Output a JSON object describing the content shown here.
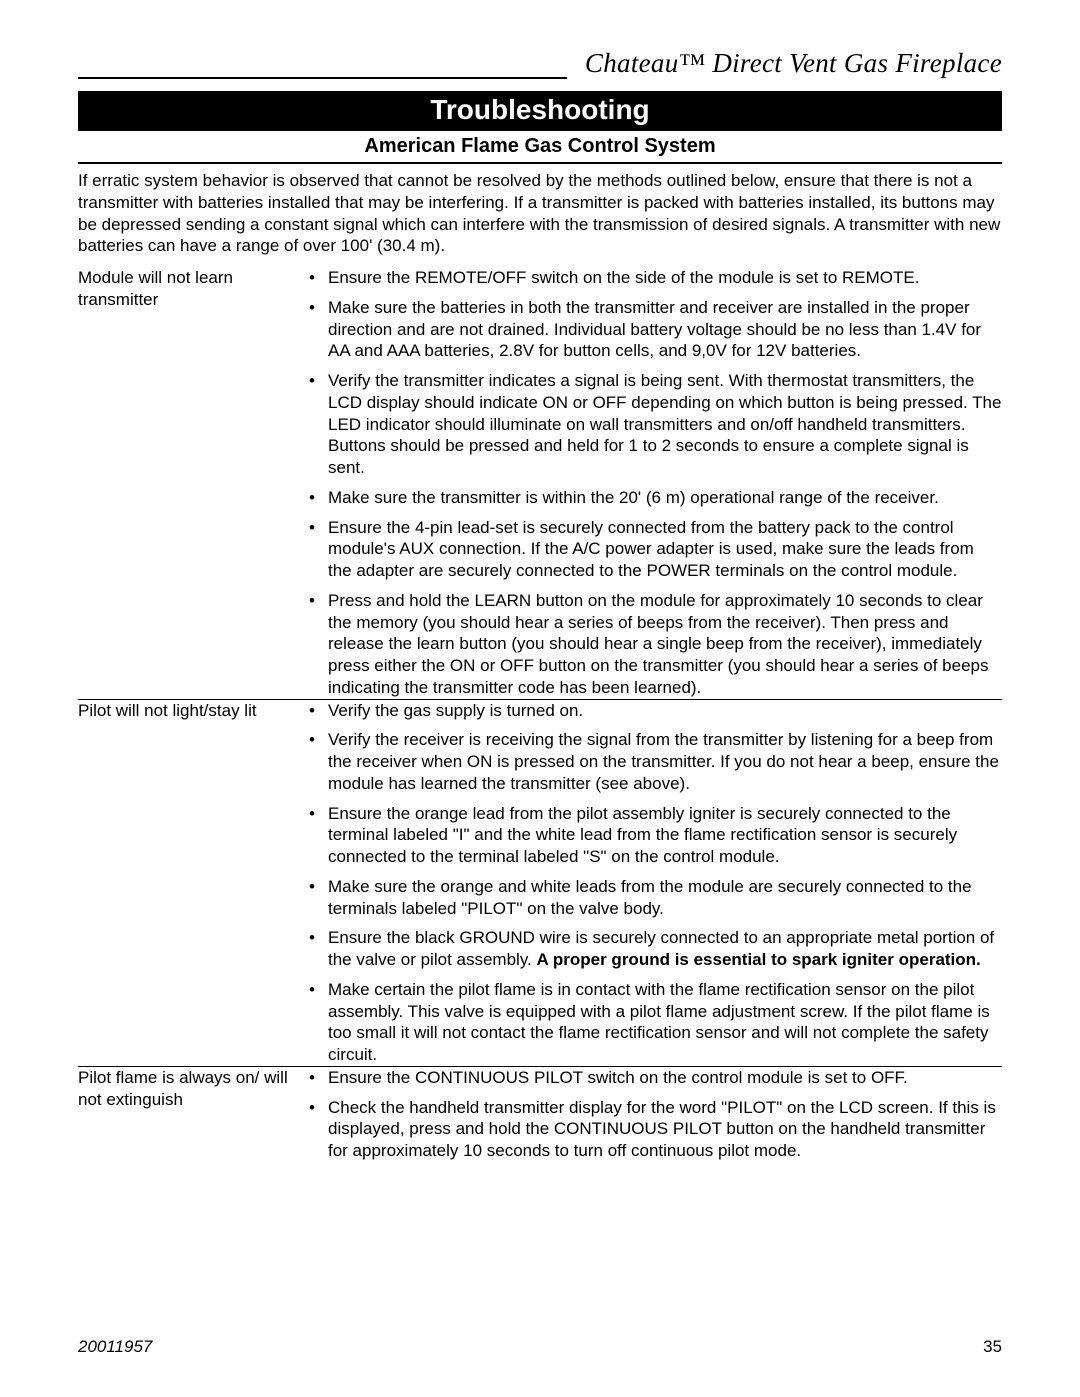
{
  "header": {
    "product_name": "Chateau™ Direct Vent Gas Fireplace"
  },
  "section": {
    "banner": "Troubleshooting",
    "subtitle": "American Flame Gas Control System"
  },
  "intro": "If erratic system behavior is observed that cannot be resolved by the methods outlined below, ensure that there is not a transmitter with batteries installed that may be interfering. If a transmitter is packed with batteries installed, its buttons may be depressed sending a constant signal which can interfere with the transmission of desired signals. A transmitter with new batteries can have a range of over 100' (30.4 m).",
  "rows": [
    {
      "problem": "Module will not learn transmitter",
      "bullets": [
        [
          {
            "t": "Ensure the REMOTE/OFF switch on the side of the module is set to REMOTE."
          }
        ],
        [
          {
            "t": "Make sure the batteries in both the transmitter and receiver are installed in the proper direction and are not drained. Individual battery voltage should be no less than 1.4V for AA and AAA batteries, 2.8V for button cells, and 9,0V for 12V batteries."
          }
        ],
        [
          {
            "t": "Verify the transmitter indicates a signal is being sent. With thermostat transmitters, the LCD display should indicate ON or OFF depending on which button is being pressed. The LED indicator should illuminate on wall transmitters and on/off handheld transmitters. Buttons should be pressed and held for 1 to 2 seconds to ensure a complete signal is sent."
          }
        ],
        [
          {
            "t": "Make sure the transmitter is within the 20' (6 m) operational range of the receiver."
          }
        ],
        [
          {
            "t": "Ensure the 4-pin lead-set is securely connected from the battery pack to the control module's AUX connection. If the A/C power adapter is used, make sure the leads from the adapter are securely connected to the POWER terminals on the control module."
          }
        ],
        [
          {
            "t": "Press and hold the LEARN button on the module for approximately 10 seconds to clear the memory (you should hear a series of beeps from the receiver). Then press and release the learn button (you should hear a single beep from the receiver), immediately press either the ON or OFF button on the transmitter (you should hear a series of beeps indicating the transmitter code has been learned)."
          }
        ]
      ]
    },
    {
      "problem": "Pilot will not light/stay lit",
      "bullets": [
        [
          {
            "t": "Verify the gas supply is turned on."
          }
        ],
        [
          {
            "t": "Verify the receiver is receiving the signal from the transmitter by listening for a beep from the receiver when ON is pressed on the transmitter. If you do not hear a beep, ensure the module has learned the transmitter (see above)."
          }
        ],
        [
          {
            "t": "Ensure the orange lead from the pilot assembly igniter is securely connected to the terminal labeled \"I\" and the white lead from the flame rectification sensor is securely connected to the terminal labeled \"S\" on the control module."
          }
        ],
        [
          {
            "t": "Make sure the orange and white leads from the module are securely connected to the terminals labeled \"PILOT\" on the valve body."
          }
        ],
        [
          {
            "t": "Ensure the black GROUND wire is securely connected to an appropriate metal portion of the valve or pilot assembly. "
          },
          {
            "t": "A proper ground is essential to spark igniter operation.",
            "b": true
          }
        ],
        [
          {
            "t": "Make certain the pilot flame is in contact with the flame rectification sensor on the pilot assembly. This valve is equipped with a pilot flame adjustment screw. If the pilot flame is too small it will not contact the flame rectification sensor and will not complete the safety circuit."
          }
        ]
      ]
    },
    {
      "problem": "Pilot flame is always on/ will not extinguish",
      "bullets": [
        [
          {
            "t": "Ensure the CONTINUOUS PILOT switch on the control module is set to OFF."
          }
        ],
        [
          {
            "t": "Check the handheld transmitter display for the word \"PILOT\" on the LCD screen. If this is displayed, press and hold the CONTINUOUS PILOT button on the handheld transmitter for approximately 10 seconds to turn off continuous pilot mode."
          }
        ]
      ]
    }
  ],
  "footer": {
    "doc_number": "20011957",
    "page_number": "35"
  }
}
